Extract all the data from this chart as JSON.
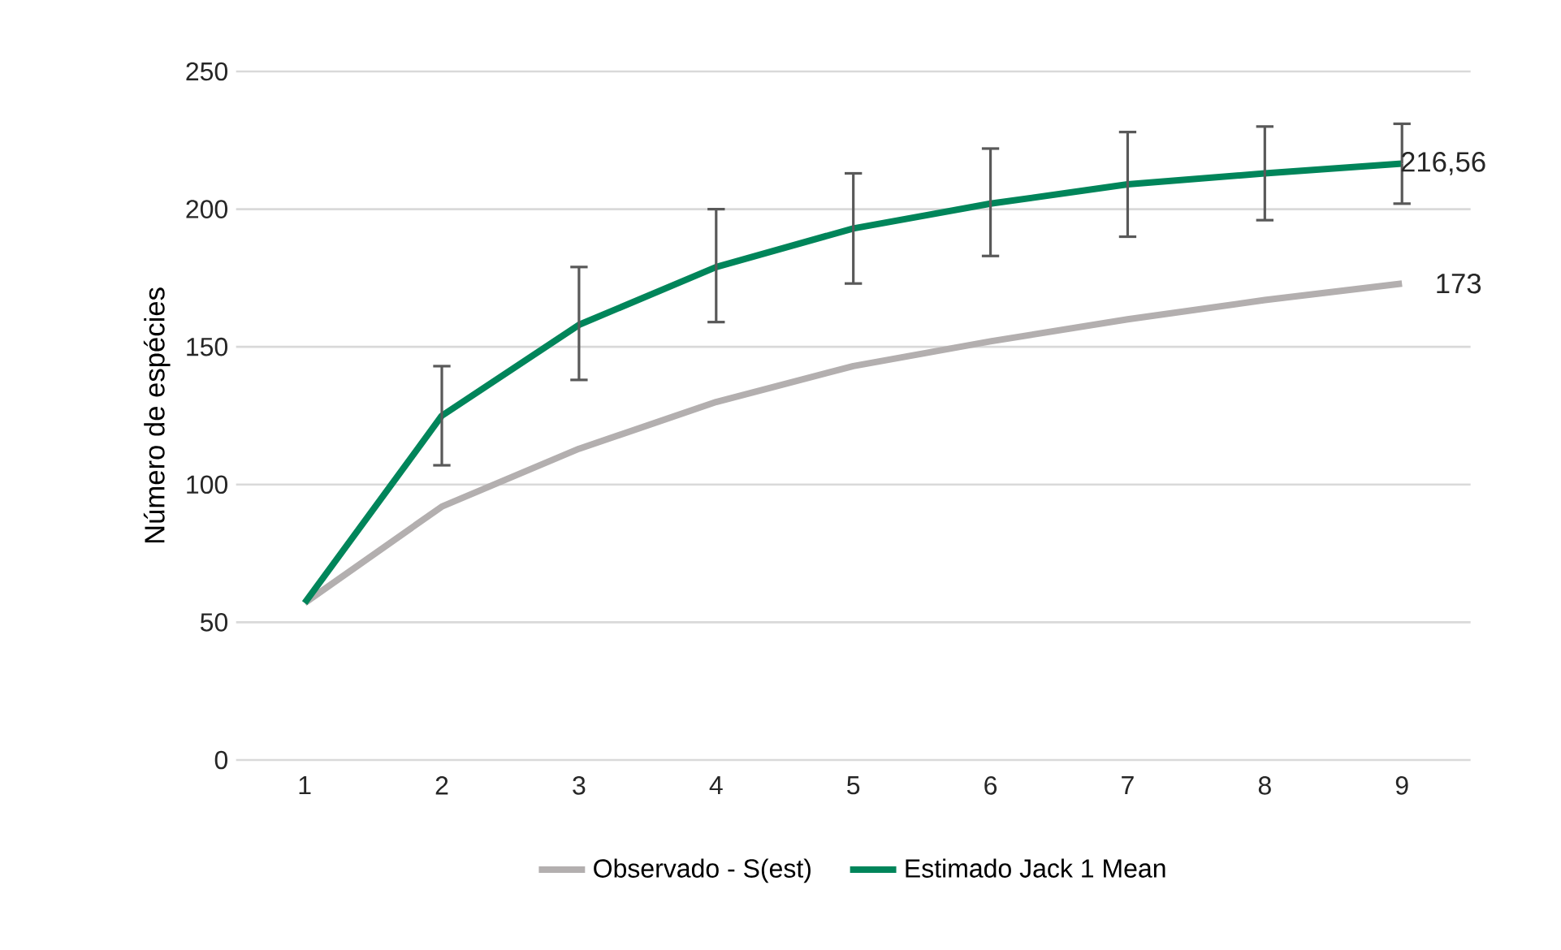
{
  "chart_data": {
    "type": "line",
    "ylabel": "Número de espécies",
    "categories": [
      "1",
      "2",
      "3",
      "4",
      "5",
      "6",
      "7",
      "8",
      "9"
    ],
    "series": [
      {
        "name": "Observado - S(est)",
        "color": "#b3afaf",
        "values": [
          57,
          92,
          113,
          130,
          143,
          152,
          160,
          167,
          173
        ],
        "value_labels": [
          null,
          null,
          null,
          null,
          null,
          null,
          null,
          null,
          "173"
        ]
      },
      {
        "name": "Estimado Jack 1 Mean",
        "color": "#00855a",
        "values": [
          57,
          125,
          158,
          179,
          193,
          202,
          209,
          213,
          216.56
        ],
        "value_labels": [
          null,
          null,
          null,
          null,
          null,
          null,
          null,
          null,
          "216,56"
        ],
        "errors": [
          null,
          [
            107,
            143
          ],
          [
            138,
            179
          ],
          [
            159,
            200
          ],
          [
            173,
            213
          ],
          [
            183,
            222
          ],
          [
            190,
            228
          ],
          [
            196,
            230
          ],
          [
            202,
            231
          ]
        ]
      }
    ],
    "ylim": [
      0,
      250
    ],
    "yticks": [
      0,
      50,
      100,
      150,
      200,
      250
    ],
    "grid": "y",
    "legend": "bottom",
    "marker": "none",
    "line_style": "solid"
  }
}
